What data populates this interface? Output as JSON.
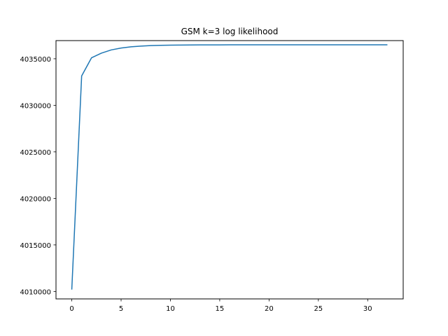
{
  "chart_data": {
    "type": "line",
    "title": "GSM k=3 log likelihood",
    "xlabel": "",
    "ylabel": "",
    "xlim": [
      -1.6,
      33.6
    ],
    "ylim": [
      4009200,
      4036950
    ],
    "x_ticks": [
      0,
      5,
      10,
      15,
      20,
      25,
      30
    ],
    "y_ticks": [
      4010000,
      4015000,
      4020000,
      4025000,
      4030000,
      4035000
    ],
    "grid": false,
    "series": [
      {
        "color": "#1f77b4",
        "x": [
          0,
          1,
          2,
          3,
          4,
          5,
          6,
          7,
          8,
          9,
          10,
          11,
          12,
          13,
          14,
          15,
          16,
          17,
          18,
          19,
          20,
          21,
          22,
          23,
          24,
          25,
          26,
          27,
          28,
          29,
          30,
          31,
          32
        ],
        "y": [
          4010200,
          4033150,
          4035100,
          4035600,
          4035950,
          4036150,
          4036280,
          4036360,
          4036410,
          4036440,
          4036460,
          4036470,
          4036480,
          4036485,
          4036490,
          4036492,
          4036494,
          4036495,
          4036496,
          4036497,
          4036497,
          4036498,
          4036498,
          4036498,
          4036499,
          4036499,
          4036499,
          4036499,
          4036500,
          4036500,
          4036500,
          4036500,
          4036500
        ]
      }
    ]
  }
}
